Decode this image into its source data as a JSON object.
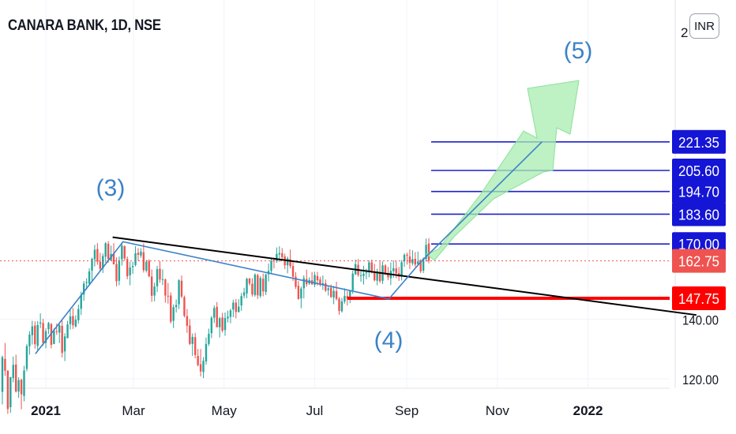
{
  "header": {
    "title": "CANARA BANK, 1D, NSE",
    "currency": "INR"
  },
  "colors": {
    "up": "#26a69a",
    "down": "#ef5350",
    "blue_line": "#1e22c8",
    "wave_line": "#3c82c8",
    "trend_line": "#000000",
    "red_line": "#ff0000",
    "arrow_fill": "#a8ecb0",
    "label_blue": "#1515d6",
    "label_current": "#ef5350",
    "label_red": "#ff0000"
  },
  "chart_data": {
    "type": "candlestick",
    "x_axis": {
      "ticks": [
        "2021",
        "Mar",
        "May",
        "Jul",
        "Sep",
        "Nov",
        "2022"
      ]
    },
    "y_axis": {
      "ticks": [
        "120.00",
        "140.00"
      ],
      "top_partial_label": "2",
      "scale": "log"
    },
    "wave_labels": [
      "(3)",
      "(4)",
      "(5)"
    ],
    "price_levels": [
      {
        "label": "221.35",
        "value": 221.35,
        "color": "blue"
      },
      {
        "label": "205.60",
        "value": 205.6,
        "color": "blue"
      },
      {
        "label": "194.70",
        "value": 194.7,
        "color": "blue"
      },
      {
        "label": "183.60",
        "value": 183.6,
        "color": "blue"
      },
      {
        "label": "170.00",
        "value": 170.0,
        "color": "blue"
      },
      {
        "label": "147.75",
        "value": 147.75,
        "color": "red"
      }
    ],
    "current_price": {
      "label": "162.75",
      "value": 162.75
    },
    "trend_line": {
      "from": {
        "date": "2021-02-15",
        "value": 173.0
      },
      "to": {
        "date": "2022-03-15",
        "value": 141.5
      }
    },
    "wave_path": [
      {
        "date": "2020-12-25",
        "value": 128.0
      },
      {
        "date": "2021-02-22",
        "value": 171.0
      },
      {
        "date": "2021-08-20",
        "value": 147.5
      },
      {
        "date": "2021-09-10",
        "value": 162.0
      },
      {
        "date": "2021-12-01",
        "value": 221.35
      }
    ],
    "candles": [
      [
        116,
        127.4,
        112.3,
        126.9
      ],
      [
        126.3,
        131.6,
        120.9,
        122.5
      ],
      [
        122.5,
        122.7,
        109.6,
        111
      ],
      [
        111.5,
        120.6,
        109.9,
        120.5
      ],
      [
        120.2,
        127.1,
        118.9,
        124.4
      ],
      [
        124.5,
        127.7,
        115.8,
        116.1
      ],
      [
        116.1,
        120.5,
        114.2,
        119.6
      ],
      [
        119.7,
        120,
        110.9,
        115.3
      ],
      [
        114.8,
        124.1,
        113.2,
        122.6
      ],
      [
        123.1,
        131.3,
        122.3,
        130.6
      ],
      [
        130.5,
        135.7,
        127.7,
        134.5
      ],
      [
        134.3,
        139.4,
        131.1,
        137.4
      ],
      [
        137.7,
        139.2,
        129.7,
        131.2
      ],
      [
        130.6,
        139.3,
        129.1,
        137.9
      ],
      [
        138.4,
        142.1,
        136.8,
        138.8
      ],
      [
        138.6,
        140.1,
        130.7,
        131.7
      ],
      [
        131.6,
        136.7,
        129.8,
        135.7
      ],
      [
        136.4,
        139,
        134.7,
        138.6
      ],
      [
        138.2,
        138.6,
        129.8,
        131
      ],
      [
        131.3,
        136.7,
        131.2,
        135.8
      ],
      [
        135.7,
        138.4,
        134.4,
        135.5
      ],
      [
        135.2,
        138.7,
        131.6,
        137.8
      ],
      [
        137.6,
        139.5,
        126.8,
        128.3
      ],
      [
        128.8,
        135,
        125.6,
        133.9
      ],
      [
        133.3,
        139.4,
        133.2,
        138.1
      ],
      [
        138.2,
        143.3,
        136.3,
        141
      ],
      [
        141.1,
        144.1,
        136.5,
        137.8
      ],
      [
        137.4,
        141.4,
        137,
        139.8
      ],
      [
        139.6,
        145.4,
        138.4,
        143.7
      ],
      [
        143.8,
        150.3,
        141.5,
        149.1
      ],
      [
        149.2,
        154.5,
        146.8,
        153.5
      ],
      [
        153.7,
        155.6,
        151.1,
        154.1
      ],
      [
        153.5,
        159.7,
        152.7,
        158.4
      ],
      [
        158.7,
        164.1,
        154.3,
        163.6
      ],
      [
        163.4,
        169.6,
        160.4,
        167.5
      ],
      [
        167.8,
        170.4,
        161.1,
        162.4
      ],
      [
        162.4,
        166.2,
        158.3,
        159.5
      ],
      [
        159.6,
        165.9,
        157.7,
        164.8
      ],
      [
        164.5,
        170.9,
        162,
        170.3
      ],
      [
        170.1,
        171.3,
        162,
        163.5
      ],
      [
        163,
        169.3,
        162.8,
        165.7
      ],
      [
        165.9,
        170.4,
        161.2,
        161.3
      ],
      [
        161.4,
        164.2,
        152.4,
        154.4
      ],
      [
        154.6,
        164.6,
        152.8,
        163
      ],
      [
        163.4,
        170.9,
        160.8,
        169.3
      ],
      [
        169,
        169.4,
        162.8,
        163.8
      ],
      [
        163.5,
        164.6,
        155.2,
        156.4
      ],
      [
        156.8,
        162.4,
        152.8,
        160
      ],
      [
        160.1,
        162.4,
        157.4,
        160.6
      ],
      [
        161,
        169,
        160.4,
        166
      ],
      [
        166.2,
        168.2,
        162.7,
        165.3
      ],
      [
        165,
        168.2,
        164,
        166.7
      ],
      [
        166.4,
        170.3,
        157.9,
        158.9
      ],
      [
        158.7,
        163.2,
        157.9,
        162.4
      ],
      [
        162.8,
        163.4,
        156,
        156.4
      ],
      [
        156.3,
        159.2,
        146.4,
        148.7
      ],
      [
        148.8,
        153.8,
        146.6,
        152.3
      ],
      [
        152.4,
        160.7,
        150.1,
        159.3
      ],
      [
        159.5,
        162.6,
        153.8,
        155.1
      ],
      [
        155.1,
        159.2,
        152.9,
        155.2
      ],
      [
        155.1,
        155.5,
        146.1,
        148.8
      ],
      [
        148.7,
        153.7,
        145.7,
        148.5
      ],
      [
        148.8,
        150,
        138.4,
        139.1
      ],
      [
        139.4,
        145.4,
        136.8,
        144.4
      ],
      [
        144.4,
        147.3,
        142.4,
        145.2
      ],
      [
        145.5,
        155.2,
        143.7,
        154.8
      ],
      [
        154.6,
        156.7,
        147.8,
        148.4
      ],
      [
        148.2,
        148.8,
        140.6,
        141.2
      ],
      [
        141.1,
        143.7,
        135.1,
        137.6
      ],
      [
        137.7,
        140,
        130.9,
        131.3
      ],
      [
        131.3,
        134.9,
        127.3,
        133.7
      ],
      [
        133.6,
        135.1,
        126.5,
        127.6
      ],
      [
        127.3,
        129.6,
        123.9,
        124.3
      ],
      [
        124.6,
        129.6,
        120.7,
        122.3
      ],
      [
        122.1,
        126.9,
        120.2,
        125.7
      ],
      [
        125.5,
        133.5,
        124.4,
        131.3
      ],
      [
        131.3,
        136.6,
        130.6,
        134.8
      ],
      [
        135,
        141.1,
        133.3,
        140.5
      ],
      [
        140.5,
        145.1,
        138.6,
        144.1
      ],
      [
        144.5,
        146.3,
        137.1,
        137.1
      ],
      [
        137.1,
        140.8,
        133.5,
        140.3
      ],
      [
        140.6,
        142.3,
        135.2,
        135.9
      ],
      [
        136.1,
        142.4,
        134.1,
        140.4
      ],
      [
        140.3,
        143.1,
        138.8,
        140.9
      ],
      [
        140.8,
        143.8,
        138.5,
        143.2
      ],
      [
        143.5,
        147.2,
        140.7,
        146.1
      ],
      [
        146.1,
        147.5,
        140.3,
        142.6
      ],
      [
        142.6,
        147.4,
        142.4,
        144.6
      ],
      [
        145,
        149.8,
        143,
        148.6
      ],
      [
        148.8,
        151.8,
        147.7,
        150
      ],
      [
        149.6,
        155.8,
        147.8,
        155.4
      ],
      [
        155.5,
        155.7,
        152.7,
        153.5
      ],
      [
        153.4,
        155.6,
        148.4,
        149.2
      ],
      [
        149,
        157.6,
        148.4,
        157.1
      ],
      [
        156.9,
        157.4,
        147.5,
        148.9
      ],
      [
        148.6,
        156.5,
        147.9,
        155.7
      ],
      [
        155.4,
        157.5,
        148.5,
        150.4
      ],
      [
        150.2,
        157.5,
        149,
        157.1
      ],
      [
        157.2,
        161.6,
        154.3,
        158.6
      ],
      [
        158.6,
        163.8,
        157.2,
        162.8
      ],
      [
        163,
        164.1,
        159.6,
        162.6
      ],
      [
        162.7,
        168.5,
        161.9,
        165.7
      ],
      [
        165.5,
        169,
        162.3,
        166.1
      ],
      [
        166,
        168.2,
        162.9,
        164.3
      ],
      [
        164.6,
        165.8,
        159.3,
        160.9
      ],
      [
        160.9,
        164.6,
        157.6,
        163.8
      ],
      [
        163.4,
        167.6,
        159.6,
        160.6
      ],
      [
        160.6,
        162.6,
        154.5,
        156.2
      ],
      [
        156.2,
        158.1,
        151.4,
        152.2
      ],
      [
        152.6,
        154.5,
        147.2,
        147.5
      ],
      [
        147.7,
        152.3,
        144,
        151.5
      ],
      [
        151.6,
        156.8,
        147.7,
        155.6
      ],
      [
        155.3,
        159.1,
        152.2,
        153.2
      ],
      [
        153.5,
        156,
        152.9,
        154.9
      ],
      [
        154.8,
        158.1,
        152.9,
        153.2
      ],
      [
        153,
        158.2,
        152.1,
        156.9
      ],
      [
        156.5,
        158.2,
        152.7,
        154.8
      ],
      [
        155.1,
        156.2,
        152.3,
        153
      ],
      [
        152.8,
        156.7,
        151,
        153.6
      ],
      [
        153.6,
        155.1,
        150.2,
        150.7
      ],
      [
        150.9,
        152.8,
        148.8,
        151.6
      ],
      [
        151.9,
        153.1,
        147.9,
        148.2
      ],
      [
        148.1,
        152.6,
        145.5,
        150.6
      ],
      [
        150.5,
        154.2,
        146.9,
        147.5
      ],
      [
        147.6,
        148.2,
        141.6,
        143
      ],
      [
        142.9,
        147.9,
        142.4,
        146.6
      ],
      [
        146.5,
        151.6,
        145.7,
        148.6
      ],
      [
        148.6,
        150.5,
        145,
        147.6
      ],
      [
        147.8,
        150.7,
        145.9,
        150.5
      ],
      [
        150.8,
        158.7,
        149.4,
        157.5
      ],
      [
        157.2,
        163.3,
        156.9,
        161.4
      ],
      [
        161.1,
        163.5,
        156.2,
        156.9
      ],
      [
        156.8,
        158.4,
        154.2,
        156.8
      ],
      [
        156.5,
        160.7,
        153.1,
        157.4
      ],
      [
        157.8,
        159.5,
        155.2,
        157.9
      ],
      [
        158,
        162.9,
        156,
        162.1
      ],
      [
        162.1,
        163.3,
        157.5,
        158.7
      ],
      [
        158.3,
        161.5,
        154.3,
        154.8
      ],
      [
        154.6,
        159.5,
        152.8,
        158.3
      ],
      [
        158.2,
        162.5,
        153.7,
        154.4
      ],
      [
        154.6,
        162.5,
        153.3,
        160.9
      ],
      [
        160.8,
        161.3,
        156.9,
        157.7
      ],
      [
        157.6,
        160.2,
        154.8,
        156
      ],
      [
        155.6,
        162.1,
        152.9,
        158.6
      ],
      [
        158.4,
        162.9,
        155.8,
        159.7
      ],
      [
        159.6,
        162.6,
        155.6,
        157.6
      ],
      [
        157.7,
        160.2,
        154.5,
        156.2
      ],
      [
        156.3,
        163.1,
        154.7,
        162.2
      ],
      [
        162.5,
        166,
        160.2,
        165.3
      ],
      [
        165.4,
        166.2,
        161.2,
        165
      ],
      [
        164.6,
        167.6,
        159.3,
        161.9
      ],
      [
        161.7,
        167.3,
        160.8,
        163.5
      ],
      [
        163.6,
        166.5,
        160.2,
        161.2
      ],
      [
        161.4,
        166.7,
        160.6,
        162.5
      ],
      [
        162.8,
        163.5,
        157.7,
        158.4
      ],
      [
        158.7,
        164.2,
        157.7,
        163.7
      ],
      [
        163.5,
        172.4,
        162.4,
        169.6
      ],
      [
        170.2,
        172.6,
        161.7,
        162.8
      ]
    ]
  }
}
